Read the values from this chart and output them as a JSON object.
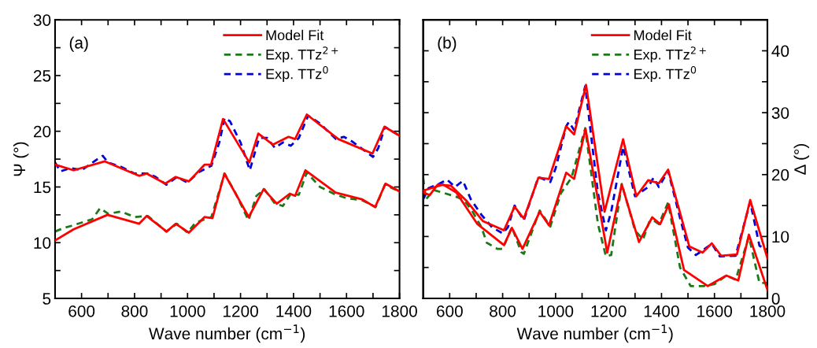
{
  "chart_data": [
    {
      "type": "line",
      "xlabel": "Wave number (cm$^{−1}$)",
      "ylabel": "Ψ (°)",
      "annotations": [
        "(a)"
      ],
      "legend": "top right",
      "grid": false,
      "marker": "none",
      "xlim": [
        500,
        1800
      ],
      "xticks": [
        600,
        {
          "value": 700,
          "label": null
        },
        800,
        {
          "value": 900,
          "label": null
        },
        1000,
        {
          "value": 1100,
          "label": null
        },
        1200,
        {
          "value": 1300,
          "label": null
        },
        1400,
        {
          "value": 1500,
          "label": null
        },
        1600,
        {
          "value": 1700,
          "label": null
        },
        1800
      ],
      "ylim": [
        5,
        30
      ],
      "yticks": [
        5,
        {
          "value": 7.5,
          "label": null
        },
        10,
        {
          "value": 12.5,
          "label": null
        },
        15,
        {
          "value": 17.5,
          "label": null
        },
        20,
        {
          "value": 22.5,
          "label": null
        },
        25,
        {
          "value": 27.5,
          "label": null
        },
        30
      ],
      "series": [
        {
          "name": "Model Fit",
          "color": "#ff0000",
          "line_style": "solid",
          "x": [
            500,
            570,
            688,
            817,
            846,
            916,
            955,
            1005,
            1064,
            1089,
            1134,
            1233,
            1267,
            1322,
            1381,
            1406,
            1450,
            1569,
            1698,
            1743,
            1800
          ],
          "values": [
            17.0,
            16.5,
            17.3,
            16.0,
            16.2,
            15.3,
            15.9,
            15.5,
            17.0,
            17.0,
            21.1,
            17.2,
            19.8,
            18.8,
            19.5,
            19.3,
            21.5,
            19.3,
            18.0,
            20.4,
            19.6
          ]
        },
        {
          "name": "Exp. TTz$^{2+}$",
          "color": "#1a7a1a",
          "line_style": "dashed",
          "x": [
            500,
            530,
            560,
            600,
            640,
            670,
            700,
            750,
            800,
            850,
            880,
            920,
            960,
            1000,
            1030,
            1090,
            1140,
            1180,
            1230,
            1260,
            1290,
            1330,
            1360,
            1390,
            1420,
            1450,
            1500,
            1560,
            1600,
            1660,
            1710,
            1745,
            1800
          ],
          "values": [
            11.0,
            11.3,
            11.5,
            11.8,
            12.1,
            13.1,
            12.6,
            12.8,
            12.3,
            12.4,
            11.8,
            11.0,
            11.7,
            10.9,
            11.8,
            12.3,
            16.2,
            14.5,
            12.0,
            14.2,
            14.8,
            13.5,
            13.3,
            14.4,
            14.3,
            16.3,
            15.0,
            14.3,
            14.0,
            13.8,
            13.2,
            15.2,
            14.6
          ]
        },
        {
          "name": "Exp. TTz$^{0}$",
          "color": "#0000dd",
          "line_style": "dashed",
          "x": [
            500,
            520,
            560,
            600,
            630,
            660,
            680,
            700,
            750,
            800,
            850,
            880,
            920,
            960,
            1000,
            1040,
            1090,
            1120,
            1140,
            1160,
            1200,
            1235,
            1270,
            1300,
            1330,
            1360,
            1390,
            1420,
            1455,
            1500,
            1560,
            1590,
            1620,
            1700,
            1720,
            1745,
            1800
          ],
          "values": [
            17.2,
            16.4,
            16.7,
            16.5,
            17.0,
            17.5,
            17.8,
            17.2,
            16.8,
            16.2,
            16.2,
            15.9,
            15.2,
            15.9,
            15.4,
            16.3,
            16.9,
            19.0,
            21.2,
            20.9,
            19.0,
            16.5,
            19.4,
            19.4,
            18.5,
            19.0,
            18.7,
            19.4,
            21.4,
            20.7,
            19.3,
            19.5,
            19.1,
            17.7,
            18.5,
            20.4,
            19.6
          ]
        },
        {
          "color": "#ff0000",
          "line_style": "solid",
          "x": [
            500,
            570,
            698,
            817,
            846,
            921,
            955,
            1005,
            1064,
            1094,
            1139,
            1231,
            1287,
            1337,
            1386,
            1406,
            1445,
            1559,
            1658,
            1708,
            1747,
            1800
          ],
          "values": [
            10.2,
            11.2,
            12.5,
            11.7,
            12.4,
            11.0,
            11.7,
            10.9,
            12.3,
            12.2,
            16.2,
            12.3,
            14.8,
            13.5,
            14.4,
            14.2,
            16.5,
            14.5,
            13.9,
            13.2,
            15.3,
            14.6
          ]
        }
      ]
    },
    {
      "type": "line",
      "xlabel": "Wave number (cm$^{−1}$)",
      "y2label": "Δ (°)",
      "annotations": [
        "(b)"
      ],
      "legend": "top right",
      "grid": false,
      "marker": "none",
      "xlim": [
        500,
        1800
      ],
      "xticks": [
        600,
        {
          "value": 700,
          "label": null
        },
        800,
        {
          "value": 900,
          "label": null
        },
        1000,
        {
          "value": 1100,
          "label": null
        },
        1200,
        {
          "value": 1300,
          "label": null
        },
        1400,
        {
          "value": 1500,
          "label": null
        },
        1600,
        {
          "value": 1700,
          "label": null
        },
        1800
      ],
      "y2lim": [
        0,
        45
      ],
      "y2ticks": [
        0,
        {
          "value": 5,
          "label": null
        },
        10,
        {
          "value": 15,
          "label": null
        },
        20,
        {
          "value": 25,
          "label": null
        },
        30,
        {
          "value": 35,
          "label": null
        },
        40
      ],
      "series": [
        {
          "name": "Model Fit",
          "color": "#ff0000",
          "line_style": "solid",
          "axis": "y2",
          "x": [
            500,
            525,
            555,
            605,
            665,
            725,
            805,
            845,
            880,
            935,
            975,
            1040,
            1070,
            1115,
            1185,
            1255,
            1305,
            1350,
            1390,
            1425,
            1505,
            1555,
            1590,
            1625,
            1685,
            1735,
            1800
          ],
          "values": [
            17.1,
            16.7,
            18.4,
            18.2,
            15.7,
            12.5,
            11.0,
            14.8,
            12.9,
            19.5,
            19.3,
            27.8,
            26.5,
            34.5,
            14.0,
            25.7,
            16.5,
            19.1,
            18.6,
            20.8,
            8.4,
            7.4,
            8.9,
            6.9,
            7.1,
            15.9,
            6.5
          ]
        },
        {
          "name": "Exp. TTz$^{2+}$",
          "color": "#1a7a1a",
          "line_style": "dashed",
          "axis": "y2",
          "x": [
            500,
            510,
            540,
            580,
            620,
            650,
            680,
            720,
            740,
            780,
            800,
            835,
            870,
            880,
            940,
            980,
            1020,
            1060,
            1112,
            1160,
            1190,
            1210,
            1250,
            1300,
            1330,
            1355,
            1370,
            1390,
            1425,
            1470,
            1510,
            1560,
            1600,
            1645,
            1680,
            1730,
            1770,
            1800
          ],
          "values": [
            19.5,
            16.0,
            17.5,
            17.0,
            16.5,
            16.0,
            14.5,
            11.5,
            9.0,
            8.0,
            8.0,
            11.5,
            7.5,
            7.2,
            14.2,
            11.6,
            17.0,
            19.5,
            27.5,
            12.0,
            6.8,
            7.0,
            18.5,
            11.0,
            9.5,
            12.5,
            12.6,
            12.0,
            15.5,
            5.0,
            2.0,
            2.0,
            2.3,
            3.7,
            3.0,
            10.0,
            2.5,
            2.5
          ]
        },
        {
          "name": "Exp. TTz$^{0}$",
          "color": "#0000dd",
          "line_style": "dashed",
          "axis": "y2",
          "x": [
            500,
            520,
            560,
            590,
            620,
            650,
            680,
            720,
            760,
            800,
            820,
            845,
            880,
            935,
            980,
            1000,
            1040,
            1050,
            1070,
            1112,
            1160,
            1190,
            1210,
            1255,
            1300,
            1350,
            1370,
            1390,
            1425,
            1470,
            1500,
            1530,
            1590,
            1620,
            1680,
            1735,
            1770,
            1800
          ],
          "values": [
            16.0,
            17.8,
            18.5,
            19.2,
            18.0,
            19.0,
            16.0,
            13.5,
            11.5,
            10.5,
            11.5,
            15.0,
            12.6,
            19.6,
            18.8,
            21.0,
            27.8,
            28.5,
            27.2,
            34.3,
            17.0,
            11.0,
            14.0,
            24.5,
            16.5,
            18.0,
            19.5,
            18.0,
            20.6,
            13.0,
            8.2,
            7.0,
            8.8,
            6.8,
            6.9,
            15.6,
            8.5,
            7.9
          ]
        },
        {
          "color": "#ff0000",
          "line_style": "solid",
          "axis": "y2",
          "x": [
            500,
            575,
            625,
            705,
            805,
            835,
            875,
            940,
            975,
            1040,
            1070,
            1113,
            1195,
            1250,
            1315,
            1365,
            1395,
            1428,
            1485,
            1575,
            1645,
            1690,
            1730,
            1800
          ],
          "values": [
            17.4,
            18.4,
            17.1,
            12.0,
            8.6,
            11.4,
            8.0,
            14.0,
            11.8,
            20.3,
            19.3,
            27.4,
            7.4,
            18.4,
            9.1,
            13.1,
            12.0,
            15.2,
            4.6,
            2.0,
            3.7,
            2.9,
            10.3,
            1.4
          ]
        }
      ]
    }
  ]
}
